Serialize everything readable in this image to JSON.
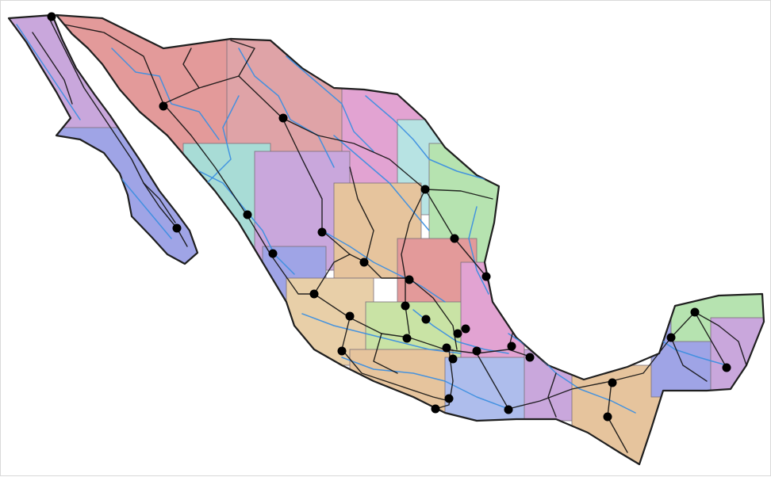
{
  "map": {
    "type": "thematic-map",
    "layers": [
      "state-regions",
      "roads",
      "rivers",
      "cities"
    ],
    "colors": {
      "road": "#111111",
      "river": "#3d8fe0",
      "city": "#000000",
      "coast": "#1f1f1f",
      "regions": [
        "#e39a9a",
        "#dfa3a7",
        "#c9a7dc",
        "#9fa4e6",
        "#a8dcd6",
        "#b6e3b0",
        "#e8cfa8",
        "#e2a3d2",
        "#aebdec",
        "#c9e3a5",
        "#e6c49d",
        "#b7e3e3"
      ]
    },
    "icons": {
      "city_marker": "filled-circle-icon"
    }
  }
}
